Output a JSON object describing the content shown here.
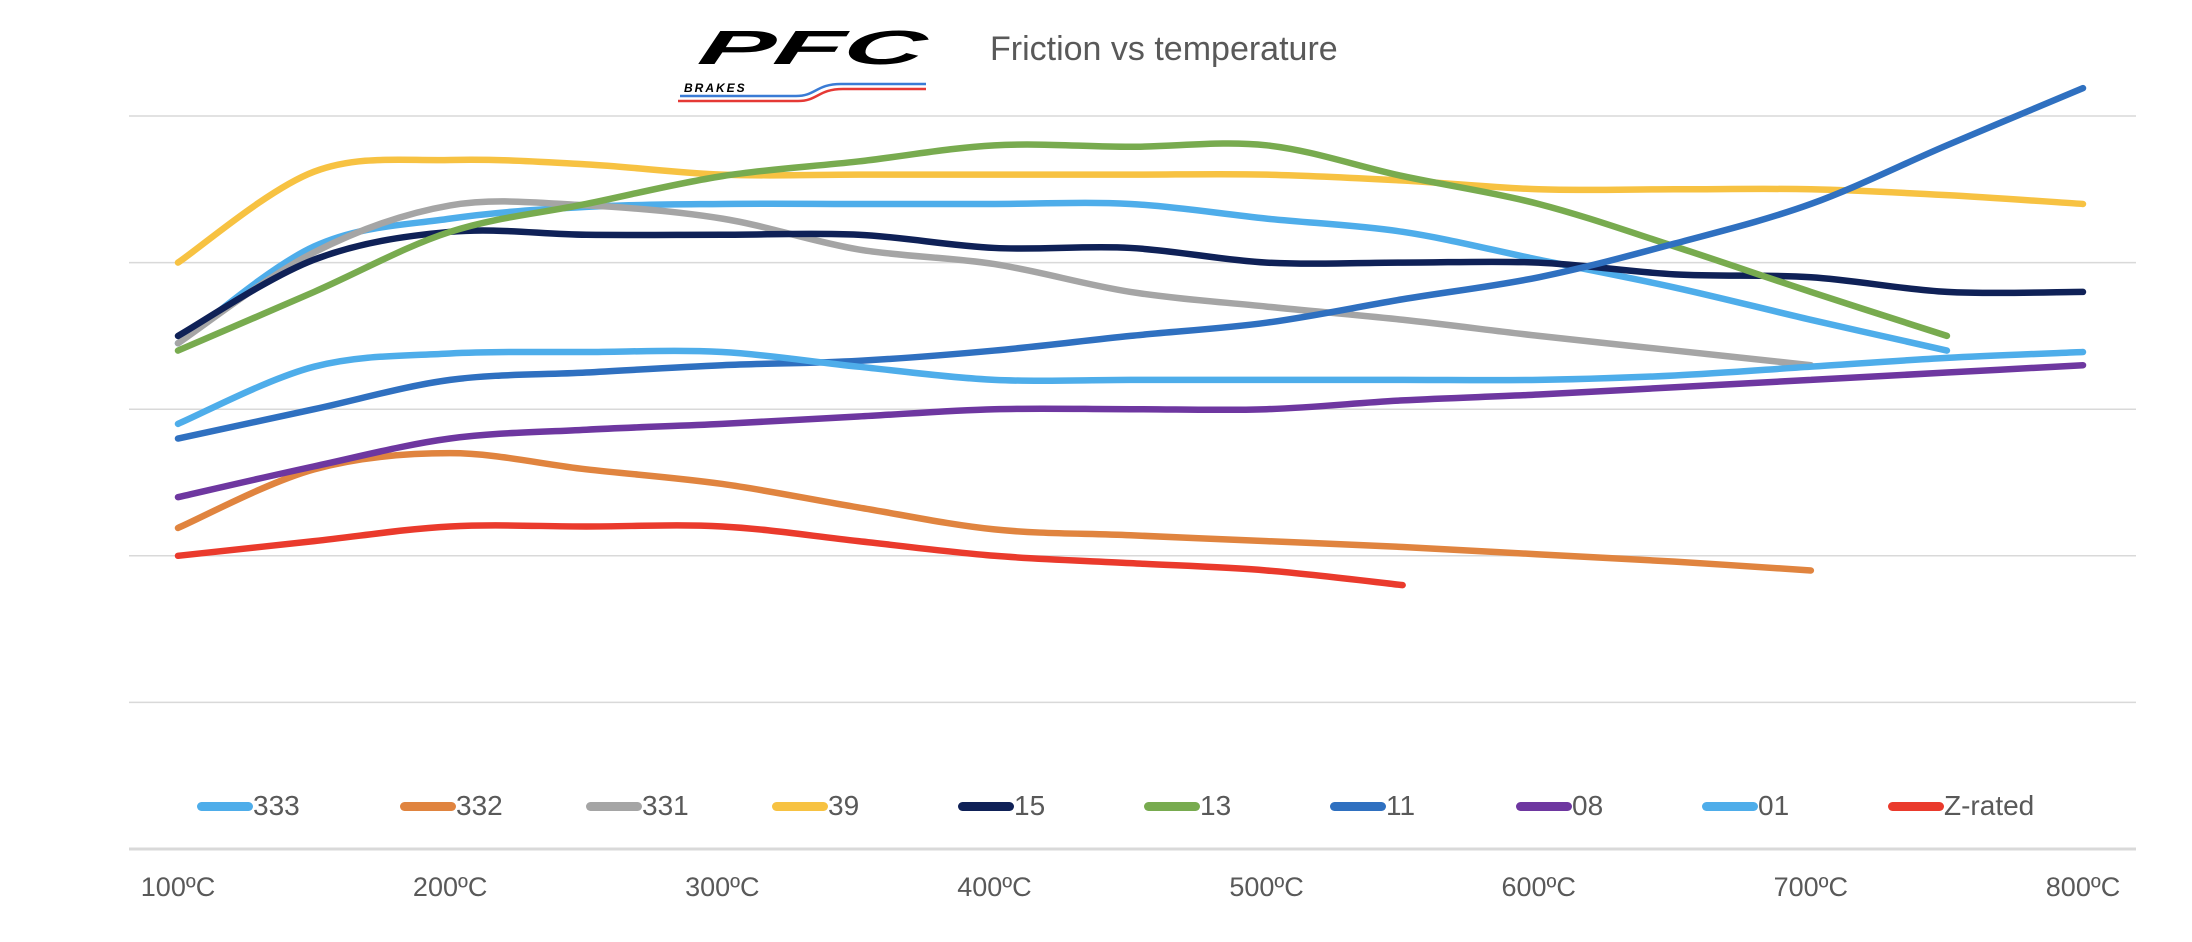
{
  "title": "Friction vs temperature",
  "logo": {
    "text": "PFC",
    "subtext": "BRAKES",
    "stripe_colors": [
      "#3a7bd5",
      "#e53935"
    ]
  },
  "chart_data": {
    "type": "line",
    "title": "Friction vs temperature",
    "xlabel": "",
    "ylabel": "",
    "x": [
      100,
      150,
      200,
      250,
      300,
      350,
      400,
      450,
      500,
      550,
      600,
      650,
      700,
      750,
      800
    ],
    "x_tick_labels": [
      "100ºC",
      "200ºC",
      "300ºC",
      "400ºC",
      "500ºC",
      "600ºC",
      "700ºC",
      "800ºC"
    ],
    "ylim": [
      0,
      5
    ],
    "y_gridlines": 6,
    "y_tick_labels_shown": false,
    "grid": true,
    "legend_position": "bottom",
    "series": [
      {
        "name": "333",
        "color": "#4EADEA",
        "values": [
          3.45,
          4.11,
          4.3,
          4.38,
          4.4,
          4.4,
          4.4,
          4.4,
          4.3,
          4.21,
          4.02,
          3.83,
          3.61,
          3.4,
          null
        ]
      },
      {
        "name": "332",
        "color": "#E0843F",
        "values": [
          2.19,
          2.59,
          2.7,
          2.59,
          2.49,
          2.33,
          2.18,
          2.14,
          2.1,
          2.06,
          2.01,
          1.96,
          1.9,
          null,
          null
        ]
      },
      {
        "name": "331",
        "color": "#A5A5A5",
        "values": [
          3.45,
          4.07,
          4.39,
          4.39,
          4.3,
          4.09,
          3.99,
          3.8,
          3.7,
          3.61,
          3.5,
          3.4,
          3.3,
          null,
          null
        ]
      },
      {
        "name": "39",
        "color": "#F7C242",
        "values": [
          4.0,
          4.62,
          4.7,
          4.67,
          4.6,
          4.6,
          4.6,
          4.6,
          4.6,
          4.56,
          4.5,
          4.5,
          4.5,
          4.46,
          4.4
        ]
      },
      {
        "name": "15",
        "color": "#0F2157",
        "values": [
          3.5,
          4.02,
          4.21,
          4.19,
          4.19,
          4.19,
          4.1,
          4.1,
          4.0,
          4.0,
          4.0,
          3.92,
          3.9,
          3.8,
          3.8
        ]
      },
      {
        "name": "13",
        "color": "#78AB4F",
        "values": [
          3.4,
          3.8,
          4.21,
          4.4,
          4.59,
          4.69,
          4.8,
          4.79,
          4.8,
          4.59,
          4.4,
          4.11,
          3.8,
          3.5,
          null
        ]
      },
      {
        "name": "11",
        "color": "#2F70C0",
        "values": [
          2.8,
          3.0,
          3.2,
          3.25,
          3.3,
          3.33,
          3.4,
          3.5,
          3.59,
          3.75,
          3.9,
          4.13,
          4.4,
          4.8,
          5.19
        ]
      },
      {
        "name": "08",
        "color": "#6E37A0",
        "values": [
          2.4,
          2.61,
          2.8,
          2.86,
          2.9,
          2.95,
          3.0,
          3.0,
          3.0,
          3.06,
          3.1,
          3.15,
          3.2,
          3.25,
          3.3
        ]
      },
      {
        "name": "01",
        "color": "#4EADEA",
        "values": [
          2.9,
          3.29,
          3.38,
          3.39,
          3.39,
          3.29,
          3.2,
          3.2,
          3.2,
          3.2,
          3.2,
          3.23,
          3.29,
          3.35,
          3.39
        ]
      },
      {
        "name": "Z-rated",
        "color": "#EA3A2C",
        "values": [
          2.0,
          2.1,
          2.2,
          2.2,
          2.2,
          2.1,
          2.0,
          1.95,
          1.9,
          1.8,
          null,
          null,
          null,
          null,
          null
        ]
      }
    ]
  }
}
